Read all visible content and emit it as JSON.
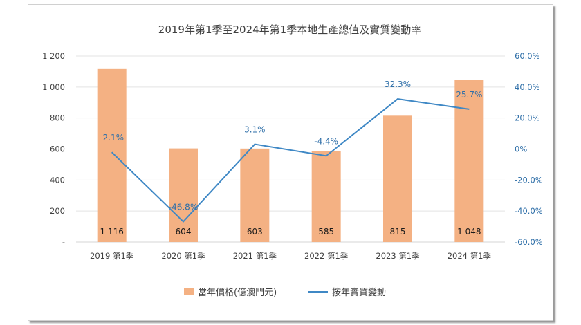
{
  "chart_data": {
    "type": "bar+line",
    "title": "2019年第1季至2024年第1季本地生產總值及實質變動率",
    "categories": [
      "2019 第1季",
      "2020 第1季",
      "2021 第1季",
      "2022 第1季",
      "2023 第1季",
      "2024 第1季"
    ],
    "series": [
      {
        "name": "當年價格(億澳門元)",
        "type": "bar",
        "axis": "left",
        "color": "#f4b183",
        "values": [
          1116,
          604,
          603,
          585,
          815,
          1048
        ],
        "labels": [
          "1 116",
          "604",
          "603",
          "585",
          "815",
          "1 048"
        ]
      },
      {
        "name": "按年實質變動",
        "type": "line",
        "axis": "right",
        "color": "#3f88c5",
        "values": [
          -2.1,
          -46.8,
          3.1,
          -4.4,
          32.3,
          25.7
        ],
        "labels": [
          "-2.1%",
          "-46.8%",
          "3.1%",
          "-4.4%",
          "32.3%",
          "25.7%"
        ]
      }
    ],
    "left_axis": {
      "ylim": [
        0,
        1200
      ],
      "ticks": [
        0,
        200,
        400,
        600,
        800,
        1000,
        1200
      ],
      "tick_labels": [
        "-",
        "200",
        "400",
        "600",
        "800",
        "1 000",
        "1 200"
      ]
    },
    "right_axis": {
      "ylim": [
        -60,
        60
      ],
      "ticks": [
        -60,
        -40,
        -20,
        0,
        20,
        40,
        60
      ],
      "tick_labels": [
        "-60.0%",
        "-40.0%",
        "-20.0%",
        "0%",
        "20.0%",
        "40.0%",
        "60.0%"
      ]
    },
    "grid": true,
    "legend_position": "bottom"
  }
}
